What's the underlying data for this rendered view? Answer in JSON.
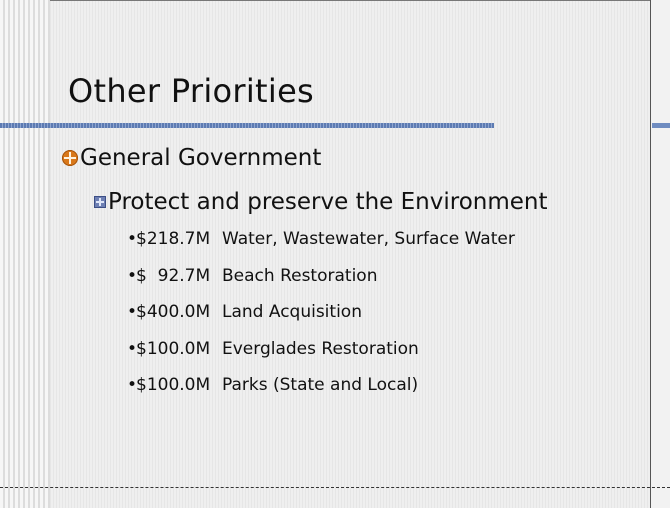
{
  "slide": {
    "title": "Other Priorities",
    "level1": "General Government",
    "level2": "Protect and preserve the Environment",
    "bullet_char": "•",
    "items": [
      {
        "amount": "$218.7M",
        "label": "Water, Wastewater, Surface Water"
      },
      {
        "amount": "$  92.7M",
        "label": "Beach Restoration"
      },
      {
        "amount": "$400.0M",
        "label": "Land Acquisition"
      },
      {
        "amount": "$100.0M",
        "label": "Everglades Restoration"
      },
      {
        "amount": "$100.0M",
        "label": "Parks (State and Local)"
      }
    ]
  },
  "colors": {
    "title_rule": "#5d7bb2",
    "level1_bullet": "#d9781a",
    "level2_bullet": "#6d7fb3"
  },
  "icons": {
    "level1_bullet": "orange-circle-plus-icon",
    "level2_bullet": "blue-square-plus-icon"
  }
}
